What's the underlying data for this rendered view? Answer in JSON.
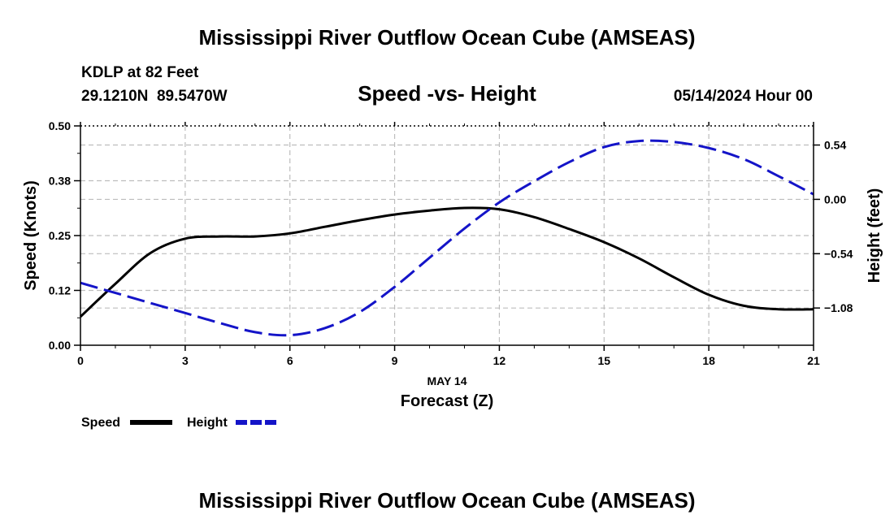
{
  "chart_data": {
    "type": "line",
    "title": "Mississippi River Outflow Ocean Cube (AMSEAS)",
    "footer_title": "Mississippi River Outflow Ocean Cube (AMSEAS)",
    "subtitle": "Speed -vs- Height",
    "station": "KDLP at 82 Feet",
    "location": "29.1210N  89.5470W",
    "datetime": "05/14/2024 Hour 00",
    "xlabel_date": "MAY 14",
    "xlabel": "Forecast (Z)",
    "ylabel_left": "Speed (Knots)",
    "ylabel_right": "Height (feet)",
    "xlim": [
      0,
      21
    ],
    "ylim_left": [
      0.0,
      0.5
    ],
    "ylim_right": [
      -1.45,
      0.73
    ],
    "x_ticks": [
      0,
      3,
      6,
      9,
      12,
      15,
      18,
      21
    ],
    "x_tick_labels": [
      "0",
      "3",
      "6",
      "9",
      "12",
      "15",
      "18",
      "21"
    ],
    "y_left_ticks": [
      0.0,
      0.125,
      0.25,
      0.375,
      0.5
    ],
    "y_left_tick_labels": [
      "0.00",
      "0.12",
      "0.25",
      "0.38",
      "0.50"
    ],
    "y_right_ticks": [
      0.54,
      0.0,
      -0.54,
      -1.08
    ],
    "y_right_tick_labels": [
      "0.54",
      "0.00",
      "−0.54",
      "−1.08"
    ],
    "grid": true,
    "legend": [
      "Speed",
      "Height"
    ],
    "series": [
      {
        "name": "Speed",
        "axis": "left",
        "color": "#000000",
        "dash": "solid",
        "x": [
          0,
          1,
          2,
          3,
          4,
          5,
          6,
          7,
          8,
          9,
          10,
          11,
          12,
          13,
          14,
          15,
          16,
          17,
          18,
          19,
          20,
          21
        ],
        "values": [
          0.065,
          0.14,
          0.21,
          0.243,
          0.248,
          0.248,
          0.255,
          0.27,
          0.285,
          0.298,
          0.307,
          0.313,
          0.31,
          0.292,
          0.265,
          0.235,
          0.198,
          0.155,
          0.115,
          0.09,
          0.082,
          0.082
        ]
      },
      {
        "name": "Height",
        "axis": "right",
        "color": "#1414c8",
        "dash": "dashed",
        "x": [
          0,
          1,
          2,
          3,
          4,
          5,
          6,
          7,
          8,
          9,
          10,
          11,
          12,
          13,
          14,
          15,
          16,
          17,
          18,
          19,
          20,
          21
        ],
        "values": [
          -0.83,
          -0.93,
          -1.03,
          -1.13,
          -1.23,
          -1.32,
          -1.35,
          -1.28,
          -1.12,
          -0.87,
          -0.58,
          -0.29,
          -0.03,
          0.18,
          0.37,
          0.52,
          0.58,
          0.57,
          0.51,
          0.4,
          0.23,
          0.05
        ]
      }
    ]
  }
}
